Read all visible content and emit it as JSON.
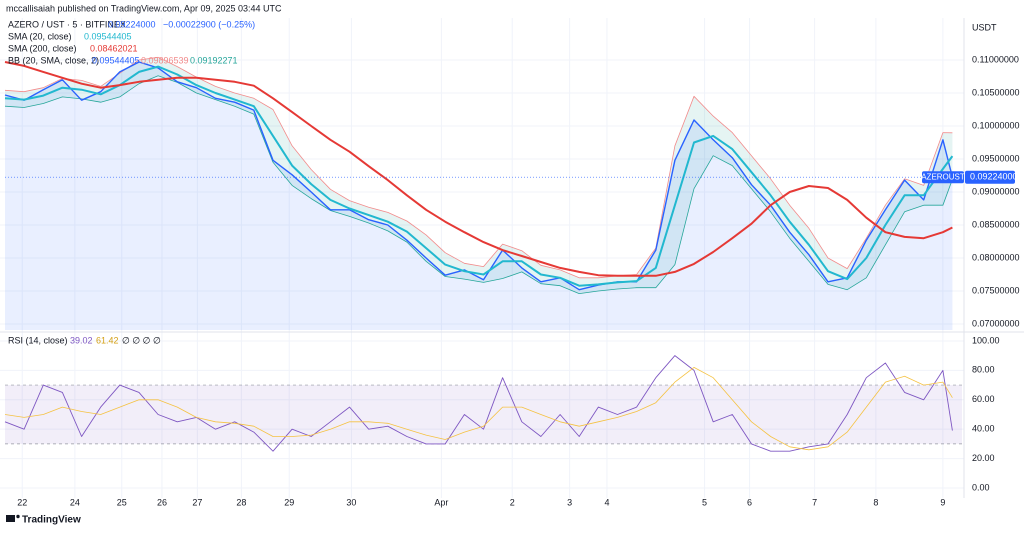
{
  "header": {
    "publisher": "mccallisaiah published on TradingView.com, Apr 09, 2025 03:44 UTC",
    "brand": "TradingView"
  },
  "chart_data": [
    {
      "type": "line",
      "symbol": "AZERO / UST · 5 · BITFINEX",
      "last": "0.09224000",
      "change": "−0.00022900 (−0.25%)",
      "y_axis_label": "USDT",
      "price_tag": "AZEROUST",
      "x": [
        0,
        2,
        4,
        6,
        8,
        10,
        12,
        14,
        16,
        18,
        20,
        22,
        24,
        26,
        28,
        30,
        32,
        34,
        36,
        38,
        40,
        42,
        44,
        46,
        48,
        50,
        52,
        54,
        56,
        58,
        60,
        62,
        64,
        66,
        68,
        70,
        72,
        74,
        76,
        78,
        80,
        82,
        84,
        86,
        88,
        90,
        92,
        94,
        96,
        98,
        99
      ],
      "xlim": [
        0,
        100
      ],
      "ylim": [
        0.06909,
        0.11636
      ],
      "yticks": [
        {
          "value": 0.07,
          "label": "0.07000000"
        },
        {
          "value": 0.075,
          "label": "0.07500000"
        },
        {
          "value": 0.08,
          "label": "0.08000000"
        },
        {
          "value": 0.085,
          "label": "0.08500000"
        },
        {
          "value": 0.09,
          "label": "0.09000000"
        },
        {
          "value": 0.095,
          "label": "0.09500000"
        },
        {
          "value": 0.1,
          "label": "0.10000000"
        },
        {
          "value": 0.105,
          "label": "0.10500000"
        },
        {
          "value": 0.11,
          "label": "0.11000000"
        }
      ],
      "grid": true,
      "bollinger": {
        "name": "BB (20, SMA, close, 2)",
        "legend_values": [
          "0.09544405",
          "0.09896539",
          "0.09192271"
        ],
        "upper_color": "#f28b8b",
        "lower_color": "#26a69a",
        "fill": "#26a69a",
        "upper": [
          0.1054,
          0.1052,
          0.1058,
          0.1072,
          0.1069,
          0.106,
          0.108,
          0.11,
          0.1104,
          0.109,
          0.1074,
          0.106,
          0.105,
          0.1042,
          0.1025,
          0.097,
          0.0934,
          0.0904,
          0.0887,
          0.0877,
          0.0869,
          0.0856,
          0.0835,
          0.0808,
          0.0792,
          0.0787,
          0.0821,
          0.0811,
          0.0789,
          0.0782,
          0.077,
          0.077,
          0.0773,
          0.0775,
          0.0815,
          0.097,
          0.1045,
          0.1015,
          0.099,
          0.0955,
          0.092,
          0.088,
          0.0845,
          0.08,
          0.0784,
          0.083,
          0.088,
          0.092,
          0.091,
          0.099,
          0.09896539
        ],
        "lower": [
          0.103,
          0.1028,
          0.1034,
          0.1044,
          0.1041,
          0.1036,
          0.1044,
          0.1064,
          0.1076,
          0.1066,
          0.105,
          0.104,
          0.103,
          0.1018,
          0.0945,
          0.091,
          0.089,
          0.0872,
          0.0863,
          0.0853,
          0.0841,
          0.0824,
          0.0795,
          0.0772,
          0.0768,
          0.0763,
          0.0769,
          0.0779,
          0.0761,
          0.0758,
          0.0746,
          0.075,
          0.0753,
          0.0755,
          0.0755,
          0.079,
          0.0905,
          0.0955,
          0.094,
          0.0905,
          0.087,
          0.083,
          0.0795,
          0.076,
          0.0752,
          0.077,
          0.082,
          0.087,
          0.088,
          0.088,
          0.09192271
        ]
      },
      "series": [
        {
          "name": "AZERO / UST · 5 · BITFINEX",
          "color": "#2962ff",
          "area": true,
          "values": [
            0.1047,
            0.1039,
            0.1055,
            0.107,
            0.1039,
            0.1052,
            0.1082,
            0.1097,
            0.1088,
            0.1067,
            0.1058,
            0.1042,
            0.1036,
            0.1024,
            0.0948,
            0.0926,
            0.09,
            0.0873,
            0.0873,
            0.0858,
            0.085,
            0.0827,
            0.08,
            0.0774,
            0.0782,
            0.0767,
            0.0812,
            0.0785,
            0.0764,
            0.077,
            0.0752,
            0.0759,
            0.0764,
            0.0764,
            0.0812,
            0.0948,
            0.1009,
            0.0979,
            0.0952,
            0.0911,
            0.088,
            0.0839,
            0.0805,
            0.0764,
            0.077,
            0.0827,
            0.0873,
            0.0918,
            0.0888,
            0.0979,
            0.09224
          ]
        },
        {
          "name": "SMA (20, close)",
          "color": "#22b8cf",
          "legend_value": "0.09544405",
          "values": [
            0.1042,
            0.104,
            0.1046,
            0.1058,
            0.1055,
            0.1048,
            0.1062,
            0.1082,
            0.109,
            0.1078,
            0.1062,
            0.105,
            0.104,
            0.103,
            0.0985,
            0.094,
            0.0912,
            0.0888,
            0.0875,
            0.0865,
            0.0855,
            0.084,
            0.0815,
            0.079,
            0.078,
            0.0775,
            0.0795,
            0.0795,
            0.0775,
            0.077,
            0.0758,
            0.076,
            0.0763,
            0.0765,
            0.0785,
            0.088,
            0.0975,
            0.0985,
            0.0965,
            0.093,
            0.0895,
            0.0855,
            0.082,
            0.078,
            0.0768,
            0.08,
            0.085,
            0.0895,
            0.0895,
            0.0935,
            0.09544405
          ]
        },
        {
          "name": "SMA (200, close)",
          "color": "#e53935",
          "legend_value": "0.08462021",
          "values": [
            0.1097,
            0.1091,
            0.1082,
            0.1073,
            0.1064,
            0.1058,
            0.1062,
            0.1067,
            0.107,
            0.1073,
            0.1073,
            0.107,
            0.1067,
            0.1061,
            0.1042,
            0.1021,
            0.1,
            0.0979,
            0.0961,
            0.0939,
            0.0918,
            0.0895,
            0.0873,
            0.0855,
            0.0839,
            0.0824,
            0.0812,
            0.0803,
            0.0794,
            0.0785,
            0.0779,
            0.0774,
            0.0773,
            0.0773,
            0.0773,
            0.0779,
            0.0791,
            0.0809,
            0.083,
            0.0852,
            0.088,
            0.09,
            0.0909,
            0.0906,
            0.0888,
            0.0861,
            0.0839,
            0.0832,
            0.083,
            0.0839,
            0.08462021
          ]
        }
      ]
    },
    {
      "type": "line",
      "title": "RSI (14, close)",
      "legend_values": [
        "39.02",
        "61.42"
      ],
      "na": "∅ ∅ ∅ ∅",
      "x": [
        0,
        2,
        4,
        6,
        8,
        10,
        12,
        14,
        16,
        18,
        20,
        22,
        24,
        26,
        28,
        30,
        32,
        34,
        36,
        38,
        40,
        42,
        44,
        46,
        48,
        50,
        52,
        54,
        56,
        58,
        60,
        62,
        64,
        66,
        68,
        70,
        72,
        74,
        76,
        78,
        80,
        82,
        84,
        86,
        88,
        90,
        92,
        94,
        96,
        98,
        99
      ],
      "xlim": [
        0,
        100
      ],
      "xticks": [
        {
          "value": 1.8,
          "label": "22"
        },
        {
          "value": 7.3,
          "label": "24"
        },
        {
          "value": 12.2,
          "label": "25"
        },
        {
          "value": 16.4,
          "label": "26"
        },
        {
          "value": 20.1,
          "label": "27"
        },
        {
          "value": 24.7,
          "label": "28"
        },
        {
          "value": 29.7,
          "label": "29"
        },
        {
          "value": 36.2,
          "label": "30"
        },
        {
          "value": 45.6,
          "label": "Apr"
        },
        {
          "value": 53.0,
          "label": "2"
        },
        {
          "value": 59.0,
          "label": "3"
        },
        {
          "value": 62.9,
          "label": "4"
        },
        {
          "value": 73.1,
          "label": "5"
        },
        {
          "value": 77.8,
          "label": "6"
        },
        {
          "value": 84.6,
          "label": "7"
        },
        {
          "value": 91.0,
          "label": "8"
        },
        {
          "value": 98.0,
          "label": "9"
        }
      ],
      "ylim": [
        -6.8,
        105.4
      ],
      "yticks": [
        {
          "value": 0,
          "label": "0.00"
        },
        {
          "value": 20,
          "label": "20.00"
        },
        {
          "value": 40,
          "label": "40.00"
        },
        {
          "value": 60,
          "label": "60.00"
        },
        {
          "value": 80,
          "label": "80.00"
        },
        {
          "value": 100,
          "label": "100.00"
        }
      ],
      "bands": [
        30,
        70
      ],
      "band_color": "#7e57c2",
      "series": [
        {
          "name": "RSI (14, close)",
          "color": "#7e57c2",
          "values": [
            45,
            40,
            70,
            65,
            35,
            55,
            70,
            65,
            50,
            45,
            48,
            40,
            45,
            38,
            25,
            40,
            35,
            45,
            55,
            40,
            42,
            35,
            30,
            30,
            50,
            40,
            75,
            45,
            35,
            50,
            35,
            55,
            50,
            55,
            75,
            90,
            80,
            45,
            50,
            30,
            25,
            25,
            28,
            30,
            50,
            75,
            85,
            65,
            60,
            80,
            39.02
          ]
        },
        {
          "color": "#f5c242",
          "values": [
            50,
            48,
            50,
            55,
            52,
            50,
            55,
            60,
            60,
            55,
            48,
            45,
            44,
            42,
            35,
            35,
            36,
            40,
            45,
            45,
            44,
            40,
            36,
            33,
            38,
            42,
            55,
            55,
            50,
            45,
            42,
            45,
            48,
            52,
            58,
            72,
            82,
            75,
            60,
            45,
            35,
            28,
            26,
            28,
            38,
            55,
            72,
            76,
            70,
            72,
            61.42
          ]
        }
      ]
    }
  ]
}
